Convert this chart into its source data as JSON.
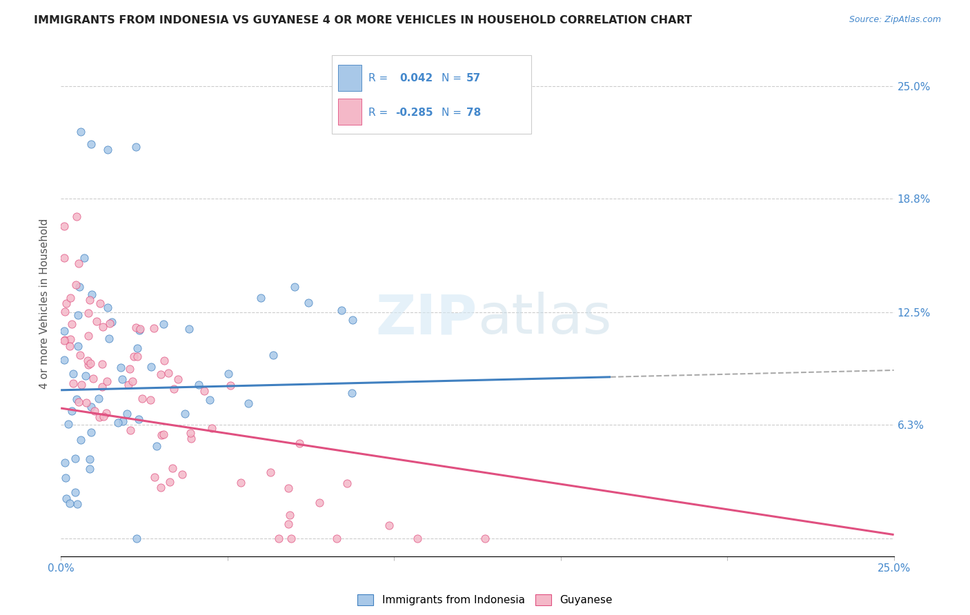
{
  "title": "IMMIGRANTS FROM INDONESIA VS GUYANESE 4 OR MORE VEHICLES IN HOUSEHOLD CORRELATION CHART",
  "source": "Source: ZipAtlas.com",
  "ylabel": "4 or more Vehicles in Household",
  "xlim": [
    0.0,
    0.25
  ],
  "ylim": [
    -0.01,
    0.27
  ],
  "color_blue": "#a8c8e8",
  "color_pink": "#f4b8c8",
  "color_blue_line": "#4080c0",
  "color_pink_line": "#e05080",
  "color_blue_text": "#4488cc",
  "color_grid": "#cccccc",
  "watermark_color": "#d5e8f5",
  "seed": 42,
  "indonesia_n": 57,
  "guyanese_n": 78,
  "indonesia_r": 0.042,
  "guyanese_r": -0.285,
  "blue_line_y_start": 0.082,
  "blue_line_y_end": 0.093,
  "blue_line_solid_end": 0.165,
  "pink_line_y_start": 0.072,
  "pink_line_y_end": 0.002,
  "ytick_values": [
    0.0,
    0.063,
    0.125,
    0.188,
    0.25
  ],
  "ytick_labels_right": [
    "",
    "6.3%",
    "12.5%",
    "18.8%",
    "25.0%"
  ]
}
